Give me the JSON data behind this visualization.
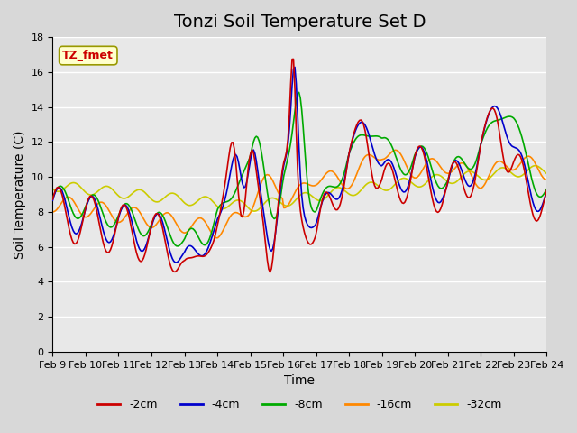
{
  "title": "Tonzi Soil Temperature Set D",
  "xlabel": "Time",
  "ylabel": "Soil Temperature (C)",
  "annotation": "TZ_fmet",
  "ylim": [
    0,
    18
  ],
  "xtick_labels": [
    "Feb 9",
    "Feb 10",
    "Feb 11",
    "Feb 12",
    "Feb 13",
    "Feb 14",
    "Feb 15",
    "Feb 16",
    "Feb 17",
    "Feb 18",
    "Feb 19",
    "Feb 20",
    "Feb 21",
    "Feb 22",
    "Feb 23",
    "Feb 24"
  ],
  "colors": {
    "-2cm": "#cc0000",
    "-4cm": "#0000cc",
    "-8cm": "#00aa00",
    "-16cm": "#ff8800",
    "-32cm": "#cccc00"
  },
  "legend_labels": [
    "-2cm",
    "-4cm",
    "-8cm",
    "-16cm",
    "-32cm"
  ],
  "plot_bg_color": "#e8e8e8",
  "title_fontsize": 14,
  "label_fontsize": 10,
  "tick_fontsize": 8,
  "n_points": 360
}
